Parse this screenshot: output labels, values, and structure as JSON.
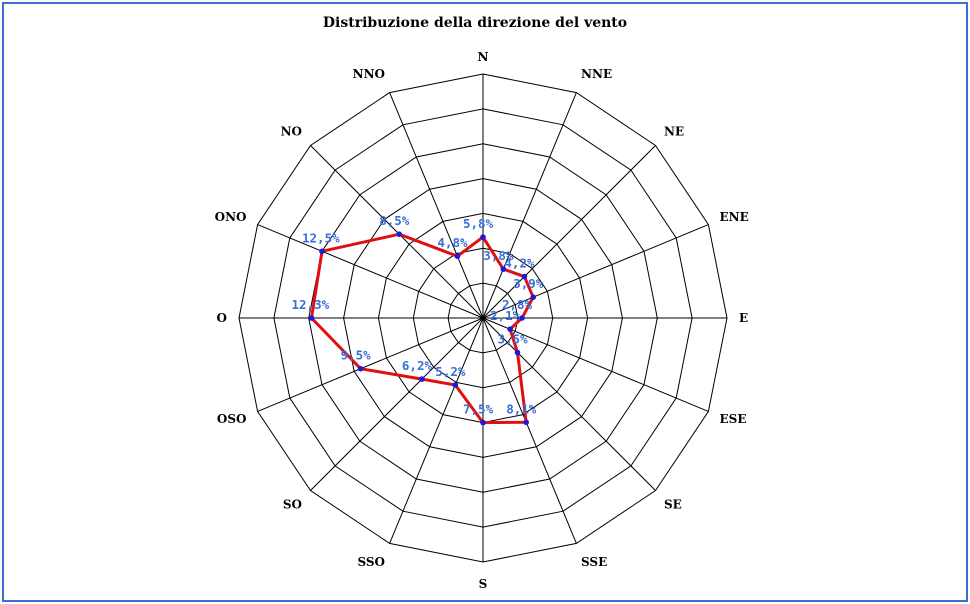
{
  "chart_data": {
    "type": "radar",
    "title": "Distribuzione della direzione del vento",
    "categories": [
      "N",
      "NNE",
      "NE",
      "ENE",
      "E",
      "ESE",
      "SE",
      "SSE",
      "S",
      "SSO",
      "SO",
      "OSO",
      "O",
      "ONO",
      "NO",
      "NNO"
    ],
    "values": [
      5.8,
      3.8,
      4.2,
      3.9,
      2.8,
      2.1,
      3.5,
      8.1,
      7.5,
      5.2,
      6.2,
      9.5,
      12.3,
      12.5,
      8.5,
      4.8
    ],
    "value_labels": [
      "5,8%",
      "3,8%",
      "4,2%",
      "3,9%",
      "2,8%",
      "2,1%",
      "3,5%",
      "8,1%",
      "7,5%",
      "5,2%",
      "6,2%",
      "9,5%",
      "12,3%",
      "12,5%",
      "8,5%",
      "4,8%"
    ],
    "rmax": 17.5,
    "rings": 7,
    "series_color": "#e01010",
    "marker_color": "#1a1adc",
    "label_color": "#3a6fd6"
  }
}
